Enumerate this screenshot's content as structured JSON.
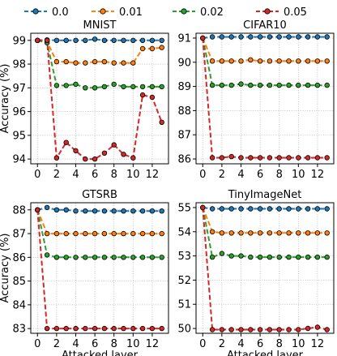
{
  "legend": {
    "placement": "top-center",
    "entries": [
      {
        "label": "0.0",
        "color": "#1f77b4"
      },
      {
        "label": "0.01",
        "color": "#ff7f0e"
      },
      {
        "label": "0.02",
        "color": "#2ca02c"
      },
      {
        "label": "0.05",
        "color": "#d62728"
      }
    ]
  },
  "chart_data": [
    {
      "type": "line",
      "title": "MNIST",
      "xlabel": "",
      "ylabel": "Accuracy (%)",
      "xlim": [
        -0.7,
        13.7
      ],
      "ylim": [
        93.8,
        99.3
      ],
      "xticks": [
        0,
        2,
        4,
        6,
        8,
        10,
        12
      ],
      "yticks": [
        94,
        95,
        96,
        97,
        98,
        99
      ],
      "grid": true,
      "x": [
        0,
        1,
        2,
        3,
        4,
        5,
        6,
        7,
        8,
        9,
        10,
        11,
        12,
        13
      ],
      "series": [
        {
          "name": "0.0",
          "color": "#1f77b4",
          "values": [
            99.0,
            99.02,
            99.0,
            99.0,
            99.0,
            99.0,
            99.05,
            99.0,
            99.0,
            99.0,
            99.0,
            99.0,
            99.0,
            99.0
          ]
        },
        {
          "name": "0.01",
          "color": "#ff7f0e",
          "values": [
            99.0,
            98.95,
            98.1,
            98.1,
            98.05,
            98.05,
            98.1,
            98.1,
            98.05,
            98.05,
            98.05,
            98.65,
            98.65,
            98.7
          ]
        },
        {
          "name": "0.02",
          "color": "#2ca02c",
          "values": [
            99.0,
            98.9,
            97.1,
            97.1,
            97.15,
            97.0,
            97.0,
            97.05,
            97.15,
            97.05,
            97.05,
            97.05,
            97.05,
            97.05
          ]
        },
        {
          "name": "0.05",
          "color": "#d62728",
          "values": [
            99.0,
            99.0,
            94.05,
            94.7,
            94.35,
            94.0,
            94.0,
            94.25,
            94.6,
            94.2,
            94.05,
            96.7,
            96.6,
            95.55
          ]
        }
      ]
    },
    {
      "type": "line",
      "title": "CIFAR10",
      "xlabel": "",
      "ylabel": "",
      "xlim": [
        -0.7,
        13.7
      ],
      "ylim": [
        85.8,
        91.2
      ],
      "xticks": [
        0,
        2,
        4,
        6,
        8,
        10,
        12
      ],
      "yticks": [
        86,
        87,
        88,
        89,
        90,
        91
      ],
      "grid": true,
      "x": [
        0,
        1,
        2,
        3,
        4,
        5,
        6,
        7,
        8,
        9,
        10,
        11,
        12,
        13
      ],
      "series": [
        {
          "name": "0.0",
          "color": "#1f77b4",
          "values": [
            91.0,
            91.05,
            91.05,
            91.05,
            91.05,
            91.05,
            91.05,
            91.05,
            91.05,
            91.05,
            91.05,
            91.05,
            91.05,
            91.05
          ]
        },
        {
          "name": "0.01",
          "color": "#ff7f0e",
          "values": [
            91.0,
            90.05,
            90.05,
            90.05,
            90.05,
            90.1,
            90.05,
            90.05,
            90.05,
            90.05,
            90.05,
            90.05,
            90.05,
            90.05
          ]
        },
        {
          "name": "0.02",
          "color": "#2ca02c",
          "values": [
            91.0,
            89.05,
            89.05,
            89.05,
            89.1,
            89.05,
            89.05,
            89.05,
            89.05,
            89.05,
            89.05,
            89.05,
            89.05,
            89.05
          ]
        },
        {
          "name": "0.05",
          "color": "#d62728",
          "values": [
            91.0,
            86.05,
            86.05,
            86.1,
            86.05,
            86.05,
            86.05,
            86.05,
            86.05,
            86.05,
            86.05,
            86.05,
            86.05,
            86.05
          ]
        }
      ]
    },
    {
      "type": "line",
      "title": "GTSRB",
      "xlabel": "Attacked layer",
      "ylabel": "Accuracy (%)",
      "xlim": [
        -0.7,
        13.7
      ],
      "ylim": [
        82.8,
        88.3
      ],
      "xticks": [
        0,
        2,
        4,
        6,
        8,
        10,
        12
      ],
      "yticks": [
        83,
        84,
        85,
        86,
        87,
        88
      ],
      "grid": true,
      "x": [
        0,
        1,
        2,
        3,
        4,
        5,
        6,
        7,
        8,
        9,
        10,
        11,
        12,
        13
      ],
      "series": [
        {
          "name": "0.0",
          "color": "#1f77b4",
          "values": [
            88.0,
            88.1,
            88.0,
            88.0,
            87.95,
            87.95,
            87.95,
            87.95,
            87.95,
            87.95,
            87.95,
            87.95,
            87.95,
            87.95
          ]
        },
        {
          "name": "0.01",
          "color": "#ff7f0e",
          "values": [
            88.0,
            87.0,
            87.0,
            87.0,
            87.0,
            87.0,
            87.0,
            87.0,
            87.0,
            87.0,
            87.0,
            87.0,
            87.0,
            87.0
          ]
        },
        {
          "name": "0.02",
          "color": "#2ca02c",
          "values": [
            88.0,
            86.1,
            86.0,
            86.0,
            86.0,
            86.0,
            86.0,
            86.0,
            86.0,
            86.0,
            86.0,
            86.0,
            86.0,
            86.0
          ]
        },
        {
          "name": "0.05",
          "color": "#d62728",
          "values": [
            88.0,
            83.0,
            83.0,
            83.0,
            83.0,
            83.0,
            83.0,
            83.0,
            83.0,
            83.0,
            83.0,
            83.0,
            83.0,
            83.0
          ]
        }
      ]
    },
    {
      "type": "line",
      "title": "TinyImageNet",
      "xlabel": "Attacked layer",
      "ylabel": "",
      "xlim": [
        -0.7,
        13.7
      ],
      "ylim": [
        49.8,
        55.2
      ],
      "xticks": [
        0,
        2,
        4,
        6,
        8,
        10,
        12
      ],
      "yticks": [
        50,
        51,
        52,
        53,
        54,
        55
      ],
      "grid": true,
      "x": [
        0,
        1,
        2,
        3,
        4,
        5,
        6,
        7,
        8,
        9,
        10,
        11,
        12,
        13
      ],
      "series": [
        {
          "name": "0.0",
          "color": "#1f77b4",
          "values": [
            55.0,
            54.95,
            54.95,
            54.95,
            54.95,
            54.95,
            54.95,
            54.95,
            54.95,
            54.95,
            54.95,
            54.95,
            54.95,
            54.95
          ]
        },
        {
          "name": "0.01",
          "color": "#ff7f0e",
          "values": [
            55.0,
            54.0,
            53.95,
            53.95,
            53.95,
            53.95,
            53.95,
            53.95,
            53.95,
            53.95,
            53.95,
            53.95,
            53.95,
            53.95
          ]
        },
        {
          "name": "0.02",
          "color": "#2ca02c",
          "values": [
            55.0,
            52.95,
            53.1,
            53.0,
            53.0,
            52.95,
            52.95,
            52.95,
            52.95,
            52.95,
            52.95,
            52.95,
            52.95,
            52.95
          ]
        },
        {
          "name": "0.05",
          "color": "#d62728",
          "values": [
            55.0,
            49.95,
            49.95,
            49.95,
            49.95,
            49.95,
            49.95,
            49.95,
            49.95,
            49.95,
            49.95,
            50.0,
            50.05,
            49.95
          ]
        }
      ]
    }
  ]
}
